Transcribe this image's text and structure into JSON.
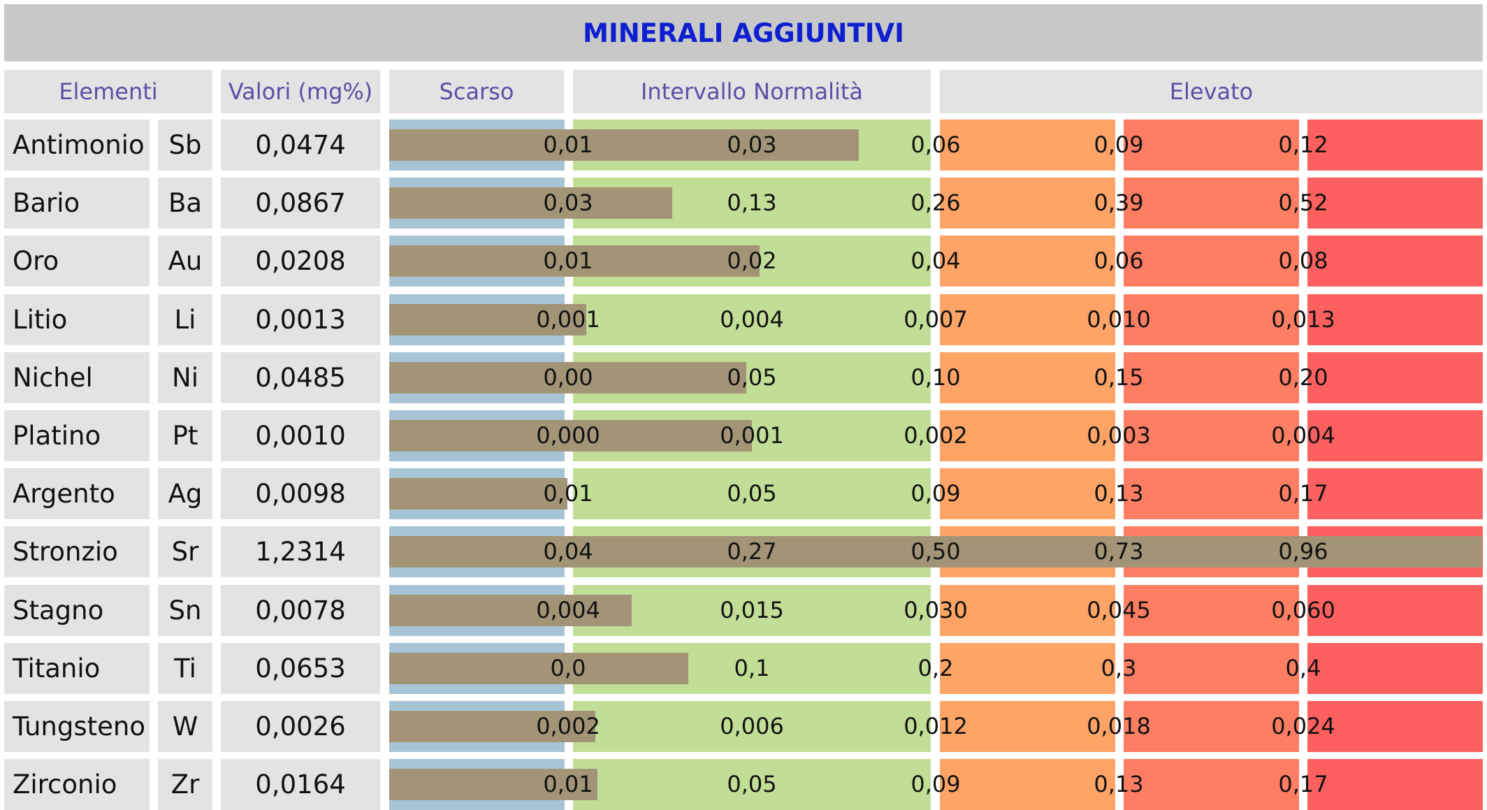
{
  "title": "MINERALI AGGIUNTIVI",
  "headers": {
    "elementi": "Elementi",
    "valori": "Valori (mg%)",
    "scarso": "Scarso",
    "normalita": "Intervallo Normalità",
    "elevato": "Elevato"
  },
  "colors": {
    "scarso": "#a7c4d6",
    "normal": "#c0de96",
    "elevato_1": "#fda466",
    "elevato_2": "#fe7e64",
    "elevato_3": "#fe6060",
    "bar": "#a39478",
    "title": "#0d1fd1",
    "header_text": "#5a4fa6"
  },
  "chart_data": {
    "type": "bar",
    "title": "MINERALI AGGIUNTIVI",
    "unit": "mg%",
    "bands": [
      "Scarso",
      "Intervallo Normalità",
      "Elevato"
    ],
    "rows": [
      {
        "name": "Antimonio",
        "symbol": "Sb",
        "value_text": "0,0474",
        "value": 0.0474,
        "ticks": [
          "0,01",
          "0,03",
          "0,06",
          "0,09",
          "0,12"
        ],
        "tick_values": [
          0.01,
          0.03,
          0.06,
          0.09,
          0.12
        ]
      },
      {
        "name": "Bario",
        "symbol": "Ba",
        "value_text": "0,0867",
        "value": 0.0867,
        "ticks": [
          "0,03",
          "0,13",
          "0,26",
          "0,39",
          "0,52"
        ],
        "tick_values": [
          0.03,
          0.13,
          0.26,
          0.39,
          0.52
        ]
      },
      {
        "name": "Oro",
        "symbol": "Au",
        "value_text": "0,0208",
        "value": 0.0208,
        "ticks": [
          "0,01",
          "0,02",
          "0,04",
          "0,06",
          "0,08"
        ],
        "tick_values": [
          0.01,
          0.02,
          0.04,
          0.06,
          0.08
        ]
      },
      {
        "name": "Litio",
        "symbol": "Li",
        "value_text": "0,0013",
        "value": 0.0013,
        "ticks": [
          "0,001",
          "0,004",
          "0,007",
          "0,010",
          "0,013"
        ],
        "tick_values": [
          0.001,
          0.004,
          0.007,
          0.01,
          0.013
        ]
      },
      {
        "name": "Nichel",
        "symbol": "Ni",
        "value_text": "0,0485",
        "value": 0.0485,
        "ticks": [
          "0,00",
          "0,05",
          "0,10",
          "0,15",
          "0,20"
        ],
        "tick_values": [
          0.0,
          0.05,
          0.1,
          0.15,
          0.2
        ]
      },
      {
        "name": "Platino",
        "symbol": "Pt",
        "value_text": "0,0010",
        "value": 0.001,
        "ticks": [
          "0,000",
          "0,001",
          "0,002",
          "0,003",
          "0,004"
        ],
        "tick_values": [
          0.0,
          0.001,
          0.002,
          0.003,
          0.004
        ]
      },
      {
        "name": "Argento",
        "symbol": "Ag",
        "value_text": "0,0098",
        "value": 0.0098,
        "ticks": [
          "0,01",
          "0,05",
          "0,09",
          "0,13",
          "0,17"
        ],
        "tick_values": [
          0.01,
          0.05,
          0.09,
          0.13,
          0.17
        ]
      },
      {
        "name": "Stronzio",
        "symbol": "Sr",
        "value_text": "1,2314",
        "value": 1.2314,
        "ticks": [
          "0,04",
          "0,27",
          "0,50",
          "0,73",
          "0,96"
        ],
        "tick_values": [
          0.04,
          0.27,
          0.5,
          0.73,
          0.96
        ]
      },
      {
        "name": "Stagno",
        "symbol": "Sn",
        "value_text": "0,0078",
        "value": 0.0078,
        "ticks": [
          "0,004",
          "0,015",
          "0,030",
          "0,045",
          "0,060"
        ],
        "tick_values": [
          0.004,
          0.015,
          0.03,
          0.045,
          0.06
        ]
      },
      {
        "name": "Titanio",
        "symbol": "Ti",
        "value_text": "0,0653",
        "value": 0.0653,
        "ticks": [
          "0,0",
          "0,1",
          "0,2",
          "0,3",
          "0,4"
        ],
        "tick_values": [
          0.0,
          0.1,
          0.2,
          0.3,
          0.4
        ]
      },
      {
        "name": "Tungsteno",
        "symbol": "W",
        "value_text": "0,0026",
        "value": 0.0026,
        "ticks": [
          "0,002",
          "0,006",
          "0,012",
          "0,018",
          "0,024"
        ],
        "tick_values": [
          0.002,
          0.006,
          0.012,
          0.018,
          0.024
        ]
      },
      {
        "name": "Zirconio",
        "symbol": "Zr",
        "value_text": "0,0164",
        "value": 0.0164,
        "ticks": [
          "0,01",
          "0,05",
          "0,09",
          "0,13",
          "0,17"
        ],
        "tick_values": [
          0.01,
          0.05,
          0.09,
          0.13,
          0.17
        ]
      }
    ]
  }
}
